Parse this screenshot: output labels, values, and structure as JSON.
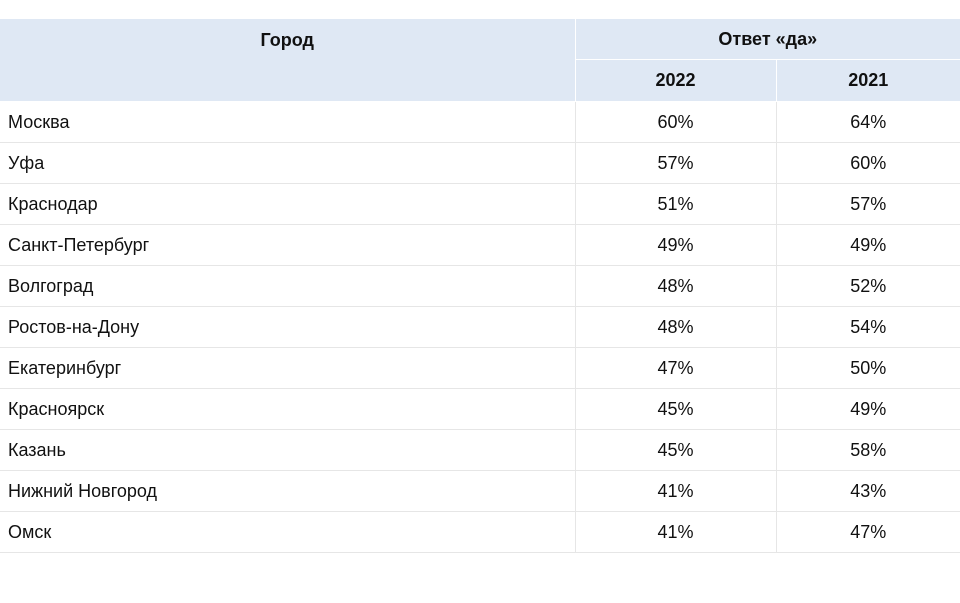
{
  "header": {
    "city": "Город",
    "group": "Ответ «да»",
    "years": [
      "2022",
      "2021"
    ]
  },
  "rows": [
    {
      "city": "Москва",
      "y2022": "60%",
      "y2021": "64%"
    },
    {
      "city": "Уфа",
      "y2022": "57%",
      "y2021": "60%"
    },
    {
      "city": "Краснодар",
      "y2022": "51%",
      "y2021": "57%"
    },
    {
      "city": "Санкт-Петербург",
      "y2022": "49%",
      "y2021": "49%"
    },
    {
      "city": "Волгоград",
      "y2022": "48%",
      "y2021": "52%"
    },
    {
      "city": "Ростов-на-Дону",
      "y2022": "48%",
      "y2021": "54%"
    },
    {
      "city": "Екатеринбург",
      "y2022": "47%",
      "y2021": "50%"
    },
    {
      "city": "Красноярск",
      "y2022": "45%",
      "y2021": "49%"
    },
    {
      "city": "Казань",
      "y2022": "45%",
      "y2021": "58%"
    },
    {
      "city": "Нижний Новгород",
      "y2022": "41%",
      "y2021": "43%"
    },
    {
      "city": "Омск",
      "y2022": "41%",
      "y2021": "47%"
    }
  ],
  "colors": {
    "header_bg": "#dfe8f4",
    "border": "#e6e6e6"
  }
}
